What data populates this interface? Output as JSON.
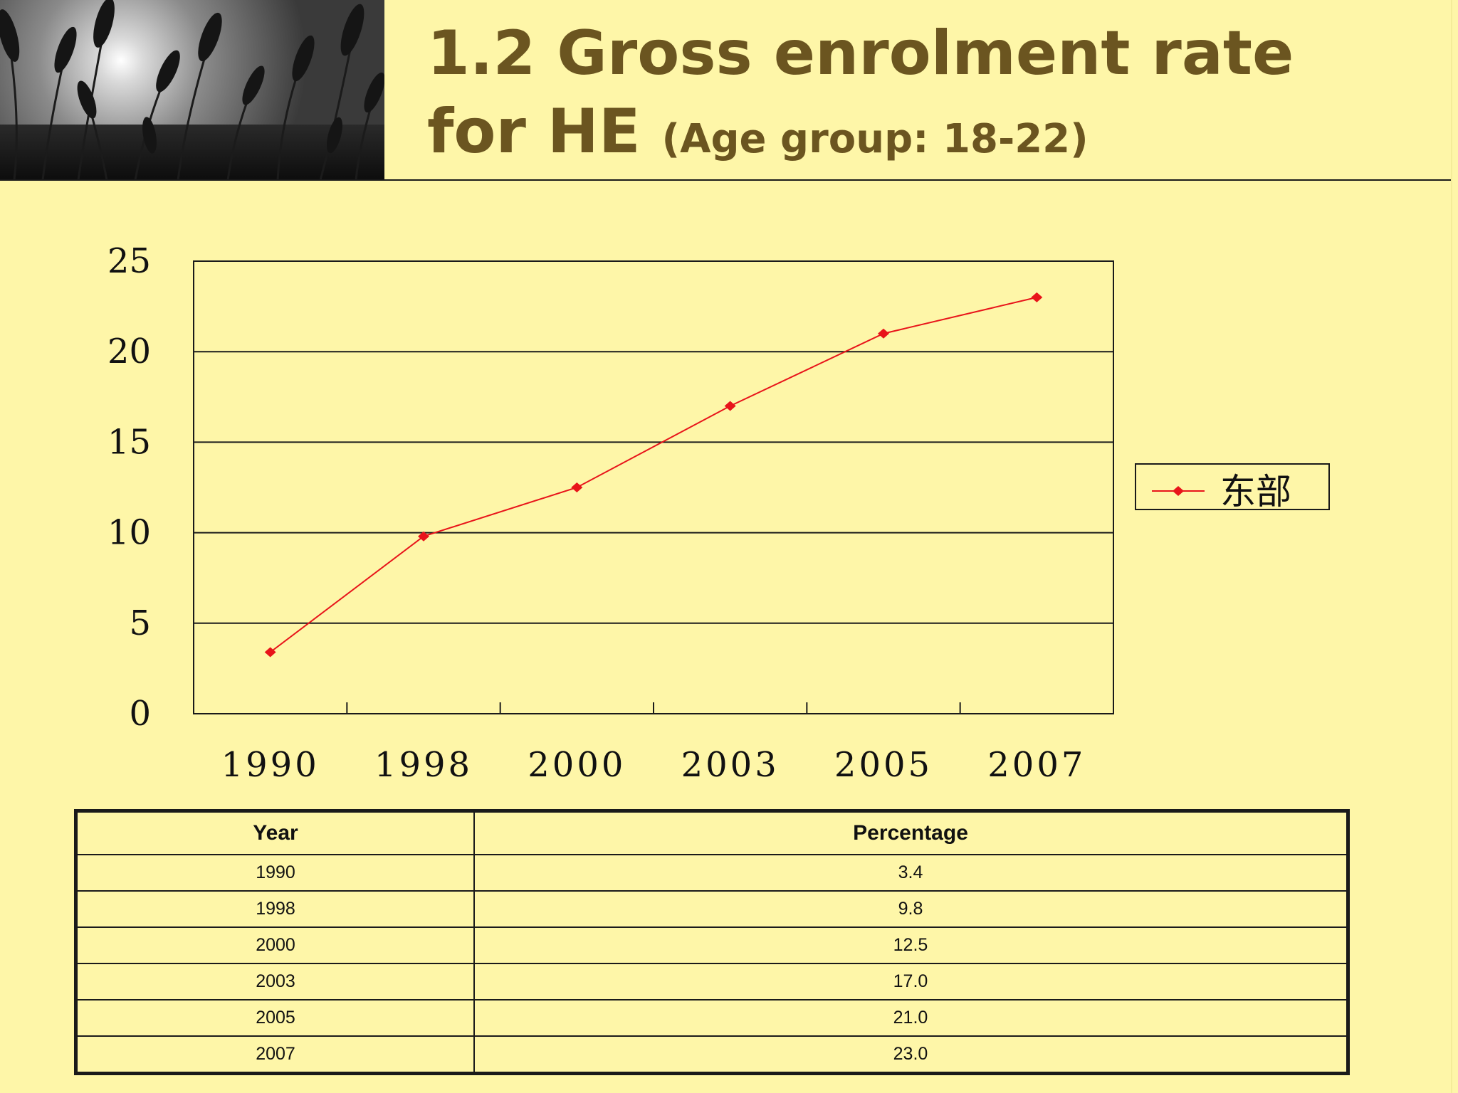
{
  "slide": {
    "title_line1": "1.2 Gross enrolment rate",
    "title_line2": "for HE",
    "title_sub": "(Age group: 18-22)"
  },
  "chart_data": {
    "type": "line",
    "categories": [
      "1990",
      "1998",
      "2000",
      "2003",
      "2005",
      "2007"
    ],
    "series": [
      {
        "name": "东部",
        "values": [
          3.4,
          9.8,
          12.5,
          17.0,
          21.0,
          23.0
        ],
        "color": "#e8141a"
      }
    ],
    "ylim": [
      0,
      25
    ],
    "yticks": [
      "0",
      "5",
      "10",
      "15",
      "20",
      "25"
    ],
    "grid": true,
    "legend": "right",
    "title": "",
    "xlabel": "",
    "ylabel": ""
  },
  "table": {
    "headers": [
      "Year",
      "Percentage"
    ],
    "rows": [
      [
        "1990",
        "3.4"
      ],
      [
        "1998",
        "9.8"
      ],
      [
        "2000",
        "12.5"
      ],
      [
        "2003",
        "17.0"
      ],
      [
        "2005",
        "21.0"
      ],
      [
        "2007",
        "23.0"
      ]
    ]
  },
  "colors": {
    "background": "#fef6a8",
    "title": "#6b5520",
    "series": "#e8141a"
  }
}
